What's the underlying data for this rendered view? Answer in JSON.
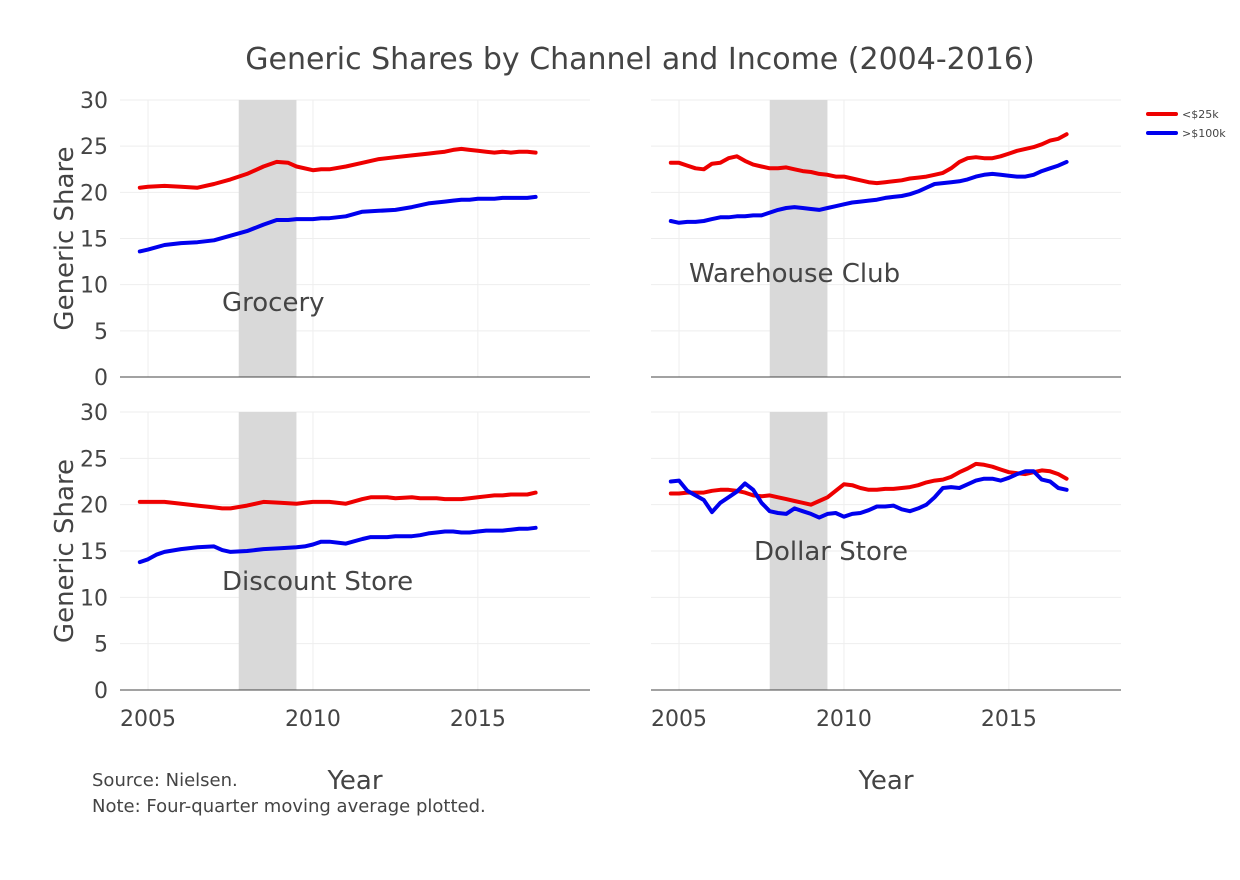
{
  "chart_data": {
    "type": "line",
    "title": "Generic Shares by Channel and Income (2004-2016)",
    "x_axis_title": "Year",
    "y_axis_title": "Generic Share",
    "x_ticks": [
      "2005",
      "2010",
      "2015"
    ],
    "x_tick_values": [
      2005,
      2010,
      2015
    ],
    "y_ticks": [
      "0",
      "5",
      "10",
      "15",
      "20",
      "25",
      "30"
    ],
    "y_tick_values": [
      0,
      5,
      10,
      15,
      20,
      25,
      30
    ],
    "xlim": [
      2004.15,
      2018.4
    ],
    "ylim": [
      0,
      30
    ],
    "grid": true,
    "legend_position": "top-right",
    "recession_shading": {
      "start": 2007.75,
      "end": 2009.5,
      "color": "#d9d9d9"
    },
    "series_meta": [
      {
        "name": "<$25k",
        "color": "#ee0000"
      },
      {
        "name": ">$100k",
        "color": "#0000ee"
      }
    ],
    "panels": [
      {
        "label": "Grocery",
        "x": [
          2004.75,
          2005.0,
          2005.5,
          2006.0,
          2006.5,
          2007.0,
          2007.5,
          2008.0,
          2008.5,
          2008.9,
          2009.25,
          2009.5,
          2010.0,
          2010.25,
          2010.5,
          2011.0,
          2011.5,
          2012.0,
          2012.5,
          2013.0,
          2013.5,
          2013.75,
          2014.0,
          2014.25,
          2014.5,
          2014.75,
          2015.0,
          2015.25,
          2015.5,
          2015.75,
          2016.0,
          2016.25,
          2016.5,
          2016.75
        ],
        "series": [
          {
            "name": "<$25k",
            "values": [
              20.5,
              20.6,
              20.7,
              20.6,
              20.5,
              20.9,
              21.4,
              22.0,
              22.8,
              23.3,
              23.2,
              22.8,
              22.4,
              22.5,
              22.5,
              22.8,
              23.2,
              23.6,
              23.8,
              24.0,
              24.2,
              24.3,
              24.4,
              24.6,
              24.7,
              24.6,
              24.5,
              24.4,
              24.3,
              24.4,
              24.3,
              24.4,
              24.4,
              24.3
            ]
          },
          {
            "name": ">$100k",
            "values": [
              13.6,
              13.8,
              14.3,
              14.5,
              14.6,
              14.8,
              15.3,
              15.8,
              16.5,
              17.0,
              17.0,
              17.1,
              17.1,
              17.2,
              17.2,
              17.4,
              17.9,
              18.0,
              18.1,
              18.4,
              18.8,
              18.9,
              19.0,
              19.1,
              19.2,
              19.2,
              19.3,
              19.3,
              19.3,
              19.4,
              19.4,
              19.4,
              19.4,
              19.5
            ]
          }
        ]
      },
      {
        "label": "Warehouse Club",
        "x": [
          2004.75,
          2005.0,
          2005.25,
          2005.5,
          2005.75,
          2006.0,
          2006.25,
          2006.5,
          2006.75,
          2007.0,
          2007.25,
          2007.5,
          2007.75,
          2008.0,
          2008.25,
          2008.5,
          2008.75,
          2009.0,
          2009.25,
          2009.5,
          2009.75,
          2010.0,
          2010.25,
          2010.5,
          2010.75,
          2011.0,
          2011.25,
          2011.5,
          2011.75,
          2012.0,
          2012.25,
          2012.5,
          2012.75,
          2013.0,
          2013.25,
          2013.5,
          2013.75,
          2014.0,
          2014.25,
          2014.5,
          2014.75,
          2015.0,
          2015.25,
          2015.5,
          2015.75,
          2016.0,
          2016.25,
          2016.5,
          2016.75
        ],
        "series": [
          {
            "name": "<$25k",
            "values": [
              23.2,
              23.2,
              22.9,
              22.6,
              22.5,
              23.1,
              23.2,
              23.7,
              23.9,
              23.4,
              23.0,
              22.8,
              22.6,
              22.6,
              22.7,
              22.5,
              22.3,
              22.2,
              22.0,
              21.9,
              21.7,
              21.7,
              21.5,
              21.3,
              21.1,
              21.0,
              21.1,
              21.2,
              21.3,
              21.5,
              21.6,
              21.7,
              21.9,
              22.1,
              22.6,
              23.3,
              23.7,
              23.8,
              23.7,
              23.7,
              23.9,
              24.2,
              24.5,
              24.7,
              24.9,
              25.2,
              25.6,
              25.8,
              26.3
            ]
          },
          {
            "name": ">$100k",
            "values": [
              16.9,
              16.7,
              16.8,
              16.8,
              16.9,
              17.1,
              17.3,
              17.3,
              17.4,
              17.4,
              17.5,
              17.5,
              17.8,
              18.1,
              18.3,
              18.4,
              18.3,
              18.2,
              18.1,
              18.3,
              18.5,
              18.7,
              18.9,
              19.0,
              19.1,
              19.2,
              19.4,
              19.5,
              19.6,
              19.8,
              20.1,
              20.5,
              20.9,
              21.0,
              21.1,
              21.2,
              21.4,
              21.7,
              21.9,
              22.0,
              21.9,
              21.8,
              21.7,
              21.7,
              21.9,
              22.3,
              22.6,
              22.9,
              23.3
            ]
          }
        ]
      },
      {
        "label": "Discount Store",
        "x": [
          2004.75,
          2005.0,
          2005.25,
          2005.5,
          2006.0,
          2006.5,
          2007.0,
          2007.25,
          2007.5,
          2008.0,
          2008.5,
          2009.0,
          2009.5,
          2009.75,
          2010.0,
          2010.25,
          2010.5,
          2011.0,
          2011.5,
          2011.75,
          2012.0,
          2012.25,
          2012.5,
          2013.0,
          2013.25,
          2013.5,
          2013.75,
          2014.0,
          2014.25,
          2014.5,
          2014.75,
          2015.0,
          2015.25,
          2015.5,
          2015.75,
          2016.0,
          2016.25,
          2016.5,
          2016.75
        ],
        "series": [
          {
            "name": "<$25k",
            "values": [
              20.3,
              20.3,
              20.3,
              20.3,
              20.1,
              19.9,
              19.7,
              19.6,
              19.6,
              19.9,
              20.3,
              20.2,
              20.1,
              20.2,
              20.3,
              20.3,
              20.3,
              20.1,
              20.6,
              20.8,
              20.8,
              20.8,
              20.7,
              20.8,
              20.7,
              20.7,
              20.7,
              20.6,
              20.6,
              20.6,
              20.7,
              20.8,
              20.9,
              21.0,
              21.0,
              21.1,
              21.1,
              21.1,
              21.3
            ]
          },
          {
            "name": ">$100k",
            "values": [
              13.8,
              14.1,
              14.6,
              14.9,
              15.2,
              15.4,
              15.5,
              15.1,
              14.9,
              15.0,
              15.2,
              15.3,
              15.4,
              15.5,
              15.7,
              16.0,
              16.0,
              15.8,
              16.3,
              16.5,
              16.5,
              16.5,
              16.6,
              16.6,
              16.7,
              16.9,
              17.0,
              17.1,
              17.1,
              17.0,
              17.0,
              17.1,
              17.2,
              17.2,
              17.2,
              17.3,
              17.4,
              17.4,
              17.5
            ]
          }
        ]
      },
      {
        "label": "Dollar Store",
        "x": [
          2004.75,
          2005.0,
          2005.25,
          2005.5,
          2005.75,
          2006.0,
          2006.25,
          2006.5,
          2006.75,
          2007.0,
          2007.25,
          2007.5,
          2007.75,
          2008.0,
          2008.25,
          2008.5,
          2008.75,
          2009.0,
          2009.25,
          2009.5,
          2009.75,
          2010.0,
          2010.25,
          2010.5,
          2010.75,
          2011.0,
          2011.25,
          2011.5,
          2011.75,
          2012.0,
          2012.25,
          2012.5,
          2012.75,
          2013.0,
          2013.25,
          2013.5,
          2013.75,
          2014.0,
          2014.25,
          2014.5,
          2014.75,
          2015.0,
          2015.25,
          2015.5,
          2015.75,
          2016.0,
          2016.25,
          2016.5,
          2016.75
        ],
        "series": [
          {
            "name": "<$25k",
            "values": [
              21.2,
              21.2,
              21.3,
              21.3,
              21.3,
              21.5,
              21.6,
              21.6,
              21.5,
              21.3,
              21.0,
              20.9,
              21.0,
              20.8,
              20.6,
              20.4,
              20.2,
              20.0,
              20.4,
              20.8,
              21.5,
              22.2,
              22.1,
              21.8,
              21.6,
              21.6,
              21.7,
              21.7,
              21.8,
              21.9,
              22.1,
              22.4,
              22.6,
              22.7,
              23.0,
              23.5,
              23.9,
              24.4,
              24.3,
              24.1,
              23.8,
              23.5,
              23.4,
              23.3,
              23.5,
              23.7,
              23.6,
              23.3,
              22.8
            ]
          },
          {
            "name": ">$100k",
            "values": [
              22.5,
              22.6,
              21.5,
              21.0,
              20.5,
              19.2,
              20.2,
              20.8,
              21.4,
              22.3,
              21.6,
              20.2,
              19.3,
              19.1,
              19.0,
              19.6,
              19.3,
              19.0,
              18.6,
              19.0,
              19.1,
              18.7,
              19.0,
              19.1,
              19.4,
              19.8,
              19.8,
              19.9,
              19.5,
              19.3,
              19.6,
              20.0,
              20.8,
              21.8,
              21.9,
              21.8,
              22.2,
              22.6,
              22.8,
              22.8,
              22.6,
              22.9,
              23.3,
              23.6,
              23.6,
              22.7,
              22.5,
              21.8,
              21.6
            ]
          }
        ]
      }
    ]
  },
  "footer_notes": [
    "Source: Nielsen.",
    "Note: Four-quarter moving average plotted."
  ]
}
